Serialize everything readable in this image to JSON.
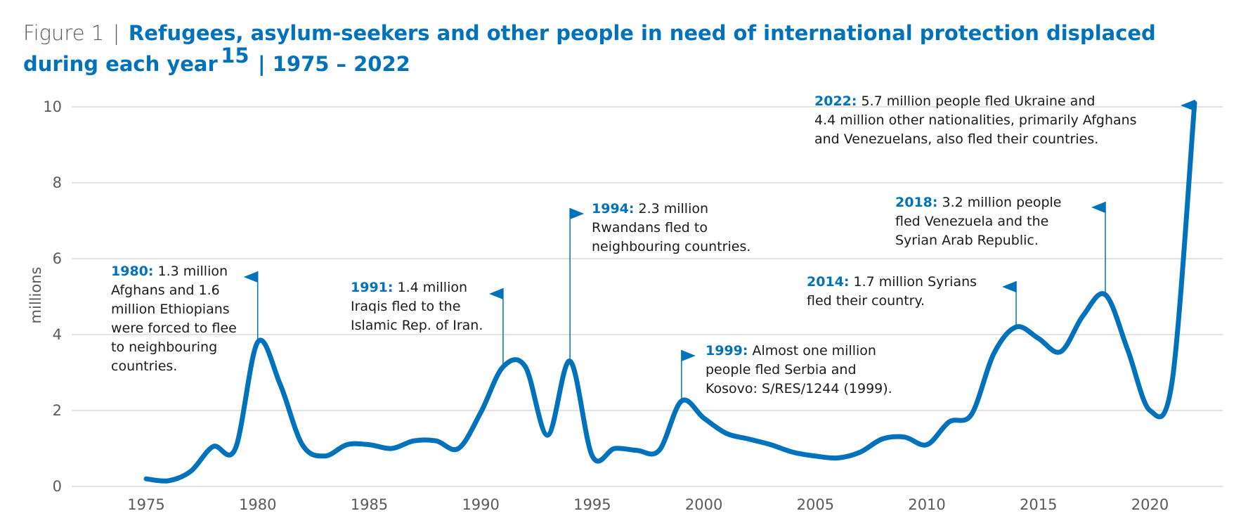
{
  "figure": {
    "label": "Figure 1",
    "separator": "|",
    "title_line1": "Refugees, asylum-seekers and other people in need of international protection displaced",
    "title_line2": "during each year",
    "footnote": "15",
    "title_range": "| 1975 – 2022"
  },
  "colors": {
    "accent": "#0072bc",
    "grid": "#d9d9d9",
    "text": "#5a5a5a"
  },
  "chart_data": {
    "type": "line",
    "ylabel": "millions",
    "xlabel": "",
    "ylim": [
      0,
      10
    ],
    "yticks": [
      0,
      2,
      4,
      6,
      8,
      10
    ],
    "xticks": [
      1975,
      1980,
      1985,
      1990,
      1995,
      2000,
      2005,
      2010,
      2015,
      2020
    ],
    "grid": "horizontal",
    "x": [
      1975,
      1976,
      1977,
      1978,
      1979,
      1980,
      1981,
      1982,
      1983,
      1984,
      1985,
      1986,
      1987,
      1988,
      1989,
      1990,
      1991,
      1992,
      1993,
      1994,
      1995,
      1996,
      1997,
      1998,
      1999,
      2000,
      2001,
      2002,
      2003,
      2004,
      2005,
      2006,
      2007,
      2008,
      2009,
      2010,
      2011,
      2012,
      2013,
      2014,
      2015,
      2016,
      2017,
      2018,
      2019,
      2020,
      2021,
      2022
    ],
    "series": [
      {
        "name": "",
        "values": [
          0.2,
          0.15,
          0.4,
          1.05,
          1.0,
          3.8,
          2.7,
          1.1,
          0.8,
          1.1,
          1.1,
          1.0,
          1.2,
          1.2,
          1.0,
          1.95,
          3.15,
          3.15,
          1.35,
          3.3,
          0.8,
          1.0,
          0.95,
          0.95,
          2.25,
          1.8,
          1.4,
          1.25,
          1.1,
          0.9,
          0.8,
          0.75,
          0.9,
          1.25,
          1.3,
          1.1,
          1.7,
          1.9,
          3.5,
          4.2,
          3.9,
          3.55,
          4.5,
          5.05,
          3.6,
          2.0,
          2.8,
          10.1
        ]
      }
    ],
    "annotations": [
      {
        "x": 1980,
        "y": 3.8,
        "year": "1980:",
        "lines": [
          "1.3 million",
          "Afghans and 1.6",
          "million Ethiopians",
          "were forced to flee",
          "to neighbouring",
          "countries."
        ]
      },
      {
        "x": 1991,
        "y": 3.15,
        "year": "1991:",
        "lines": [
          "1.4 million",
          "Iraqis fled to the",
          "Islamic Rep. of Iran."
        ]
      },
      {
        "x": 1994,
        "y": 3.3,
        "year": "1994:",
        "lines": [
          "2.3 million",
          "Rwandans fled to",
          "neighbouring countries."
        ]
      },
      {
        "x": 1999,
        "y": 2.25,
        "year": "1999:",
        "lines": [
          "Almost one million",
          "people fled Serbia and",
          "Kosovo: S/RES/1244 (1999)."
        ]
      },
      {
        "x": 2014,
        "y": 4.2,
        "year": "2014:",
        "lines": [
          "1.7 million Syrians",
          "fled their country."
        ]
      },
      {
        "x": 2018,
        "y": 5.05,
        "year": "2018:",
        "lines": [
          "3.2 million people",
          "fled Venezuela and the",
          "Syrian Arab Republic."
        ]
      },
      {
        "x": 2022,
        "y": 10.1,
        "year": "2022:",
        "lines": [
          "5.7 million people fled Ukraine and",
          "4.4 million other nationalities, primarily Afghans",
          "and Venezuelans, also fled their countries."
        ]
      }
    ]
  }
}
